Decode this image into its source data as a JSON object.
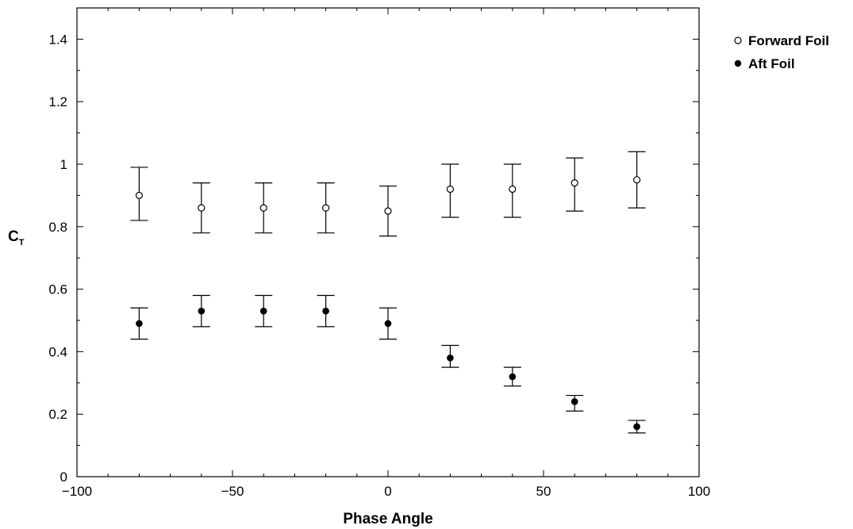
{
  "chart_data": {
    "type": "scatter",
    "xlabel": "Phase Angle",
    "ylabel": "C",
    "ylabel_subscript": "T",
    "xlim": [
      -100,
      100
    ],
    "ylim": [
      0,
      1.5
    ],
    "xticks": [
      -100,
      -50,
      0,
      50,
      100
    ],
    "xtick_labels": [
      "−100",
      "−50",
      "0",
      "50",
      "100"
    ],
    "yticks": [
      0,
      0.2,
      0.4,
      0.6,
      0.8,
      1,
      1.2,
      1.4
    ],
    "ytick_labels": [
      "0",
      "0.2",
      "0.4",
      "0.6",
      "0.8",
      "1",
      "1.2",
      "1.4"
    ],
    "grid": false,
    "legend_position": "top-right, outside plot",
    "x": [
      -80,
      -60,
      -40,
      -20,
      0,
      20,
      40,
      60,
      80
    ],
    "series": [
      {
        "name": "Forward Foil",
        "marker": "open-circle",
        "values": [
          0.9,
          0.86,
          0.86,
          0.86,
          0.85,
          0.92,
          0.92,
          0.94,
          0.95
        ],
        "error_low": [
          0.82,
          0.78,
          0.78,
          0.78,
          0.77,
          0.83,
          0.83,
          0.85,
          0.86
        ],
        "error_high": [
          0.99,
          0.94,
          0.94,
          0.94,
          0.93,
          1.0,
          1.0,
          1.02,
          1.04
        ]
      },
      {
        "name": "Aft Foil",
        "marker": "filled-circle",
        "values": [
          0.49,
          0.53,
          0.53,
          0.53,
          0.49,
          0.38,
          0.32,
          0.24,
          0.16
        ],
        "error_low": [
          0.44,
          0.48,
          0.48,
          0.48,
          0.44,
          0.35,
          0.29,
          0.21,
          0.14
        ],
        "error_high": [
          0.54,
          0.58,
          0.58,
          0.58,
          0.54,
          0.42,
          0.35,
          0.26,
          0.18
        ]
      }
    ]
  }
}
